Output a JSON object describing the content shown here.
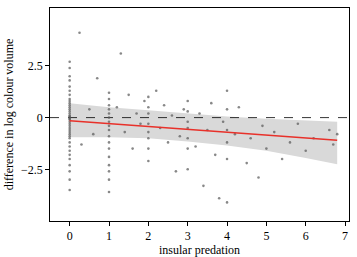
{
  "chart_data": {
    "type": "scatter",
    "x_label": "insular predation",
    "y_label": "difference in log colour volume",
    "xlim": [
      -0.5,
      7.1
    ],
    "ylim": [
      -5.0,
      5.3
    ],
    "xticks": [
      0,
      1,
      2,
      3,
      4,
      5,
      6,
      7
    ],
    "yticks": [
      {
        "value": -2.5,
        "label": "−2.5"
      },
      0,
      2.5
    ],
    "grid": false,
    "series": [
      {
        "type": "band",
        "color": "#d9d9d9",
        "x": [
          0,
          1,
          2,
          3,
          4,
          5,
          6,
          6.8
        ],
        "upper": [
          0.7,
          0.5,
          0.35,
          0.2,
          0.05,
          -0.05,
          -0.15,
          -0.2
        ],
        "lower": [
          -0.95,
          -0.95,
          -1.0,
          -1.15,
          -1.35,
          -1.6,
          -1.95,
          -2.25
        ]
      },
      {
        "type": "line",
        "color": "#000000",
        "line_style": "dashed",
        "x": [
          -0.5,
          7.1
        ],
        "values": [
          0,
          0
        ]
      },
      {
        "type": "scatter",
        "color": "#555555",
        "marker": "circle",
        "x": [
          0,
          0,
          0,
          0,
          0,
          0,
          0,
          0,
          0,
          0,
          0,
          0,
          0,
          0,
          0,
          0,
          0,
          0,
          0,
          0,
          0,
          0,
          0,
          0,
          0,
          0,
          0,
          0,
          0,
          0,
          0,
          0,
          0,
          0,
          0,
          0,
          0,
          0,
          0.25,
          1,
          1,
          1,
          1,
          1,
          1,
          1,
          1,
          1,
          1,
          1,
          1,
          1,
          1,
          1,
          1,
          1,
          0.3,
          0.5,
          0.6,
          0.7,
          1.3,
          1.2,
          1.4,
          1.5,
          1.6,
          1.7,
          1.8,
          1.9,
          2,
          2,
          2,
          2,
          2,
          2,
          2,
          2,
          2.2,
          2.3,
          2.4,
          2.5,
          2.6,
          2.7,
          2.8,
          2.9,
          3,
          3,
          3,
          3,
          3,
          3,
          3,
          3.2,
          3.3,
          3.4,
          3.5,
          3.6,
          3.7,
          3.8,
          3.9,
          4,
          4,
          4,
          4,
          4,
          4.0,
          4.2,
          4.3,
          4.5,
          4.6,
          4.8,
          4.9,
          5.0,
          5.2,
          5.4,
          5.6,
          5.8,
          6.0,
          6.2,
          6.6,
          6.8,
          6.7
        ],
        "values": [
          2.7,
          2.4,
          2.0,
          1.8,
          1.5,
          1.3,
          1.1,
          0.9,
          0.8,
          0.7,
          0.6,
          0.5,
          0.4,
          0.3,
          0.2,
          0.1,
          0.05,
          0,
          -0.05,
          -0.1,
          -0.2,
          -0.3,
          -0.4,
          -0.5,
          -0.6,
          -0.7,
          -0.8,
          -0.9,
          -1.0,
          -1.2,
          -1.4,
          -1.6,
          -1.8,
          -2.0,
          -2.3,
          -2.6,
          -3.0,
          -3.5,
          4.1,
          1.2,
          0.9,
          0.6,
          0.4,
          0.2,
          0,
          -0.2,
          -0.4,
          -0.6,
          -0.9,
          -1.2,
          -1.5,
          -1.9,
          -2.3,
          -2.6,
          -3.0,
          -3.6,
          -1.3,
          0.4,
          -0.8,
          1.9,
          3.1,
          0.5,
          -0.7,
          1.1,
          -1.5,
          0.2,
          -0.3,
          0.8,
          1.0,
          0.5,
          0.2,
          -0.3,
          -0.7,
          -1.0,
          -1.5,
          -2.1,
          1.3,
          -0.5,
          0.6,
          -1.2,
          0.1,
          -2.6,
          -0.9,
          0.4,
          0.8,
          0.3,
          -0.2,
          -0.5,
          -1.0,
          -1.5,
          -2.5,
          -1.4,
          0.2,
          -3.3,
          -0.6,
          0.7,
          -1.8,
          -3.9,
          -0.2,
          1.3,
          0.4,
          -0.6,
          -1.2,
          -2.0,
          -4.1,
          -0.8,
          0.5,
          -2.2,
          -1.0,
          -2.9,
          -0.4,
          -1.5,
          -0.7,
          -2.0,
          -1.2,
          -0.3,
          -1.6,
          -1.0,
          -0.6,
          -0.8,
          -1.3
        ]
      },
      {
        "type": "line",
        "color": "#e8312a",
        "line_style": "solid",
        "x": [
          0,
          6.8
        ],
        "values": [
          -0.15,
          -1.1
        ]
      }
    ]
  }
}
